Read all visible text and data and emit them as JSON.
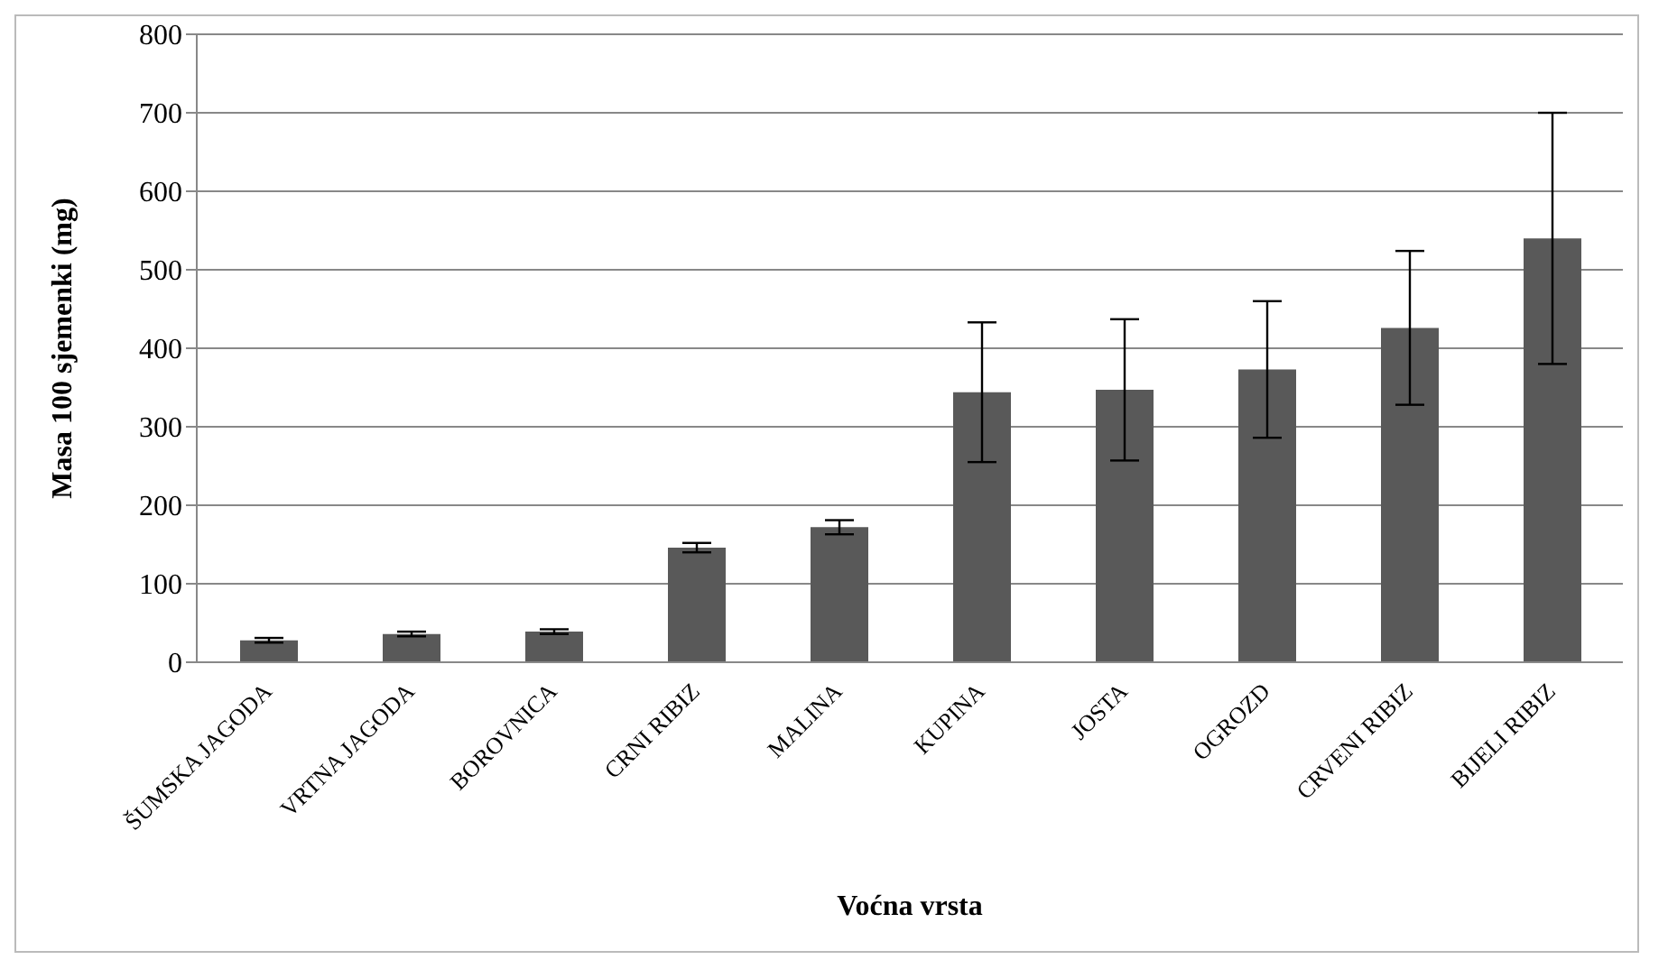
{
  "chart_data": {
    "type": "bar",
    "xlabel": "Voćna vrsta",
    "ylabel": "Masa 100 sjemenki (mg)",
    "categories": [
      "ŠUMSKA JAGODA",
      "VRTNA JAGODA",
      "BOROVNICA",
      "CRNI RIBIZ",
      "MALINA",
      "KUPINA",
      "JOSTA",
      "OGROZD",
      "CRVENI RIBIZ",
      "BIJELI RIBIZ"
    ],
    "values": [
      28,
      36,
      39,
      146,
      172,
      344,
      347,
      373,
      426,
      540
    ],
    "errors": [
      3,
      3,
      3,
      6,
      9,
      89,
      90,
      87,
      98,
      160
    ],
    "color": "#595959",
    "ylim": [
      0,
      800
    ],
    "yticks": [
      0,
      100,
      200,
      300,
      400,
      500,
      600,
      700,
      800
    ],
    "grid": "y",
    "legend": false
  }
}
